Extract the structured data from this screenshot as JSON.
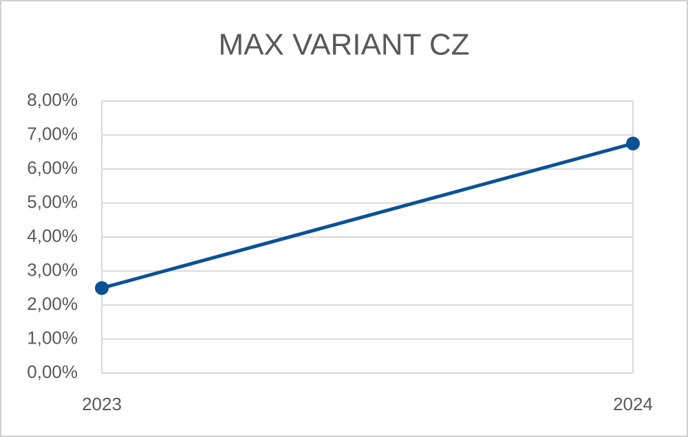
{
  "chart_data": {
    "type": "line",
    "title": "MAX VARIANT CZ",
    "categories": [
      "2023",
      "2024"
    ],
    "values": [
      2.5,
      6.75
    ],
    "color": "#0a5296",
    "ylim": [
      0,
      8
    ],
    "yticks": [
      {
        "value": 0,
        "label": "0,00%"
      },
      {
        "value": 1,
        "label": "1,00%"
      },
      {
        "value": 2,
        "label": "2,00%"
      },
      {
        "value": 3,
        "label": "3,00%"
      },
      {
        "value": 4,
        "label": "4,00%"
      },
      {
        "value": 5,
        "label": "5,00%"
      },
      {
        "value": 6,
        "label": "6,00%"
      },
      {
        "value": 7,
        "label": "7,00%"
      },
      {
        "value": 8,
        "label": "8,00%"
      }
    ],
    "grid": true
  }
}
